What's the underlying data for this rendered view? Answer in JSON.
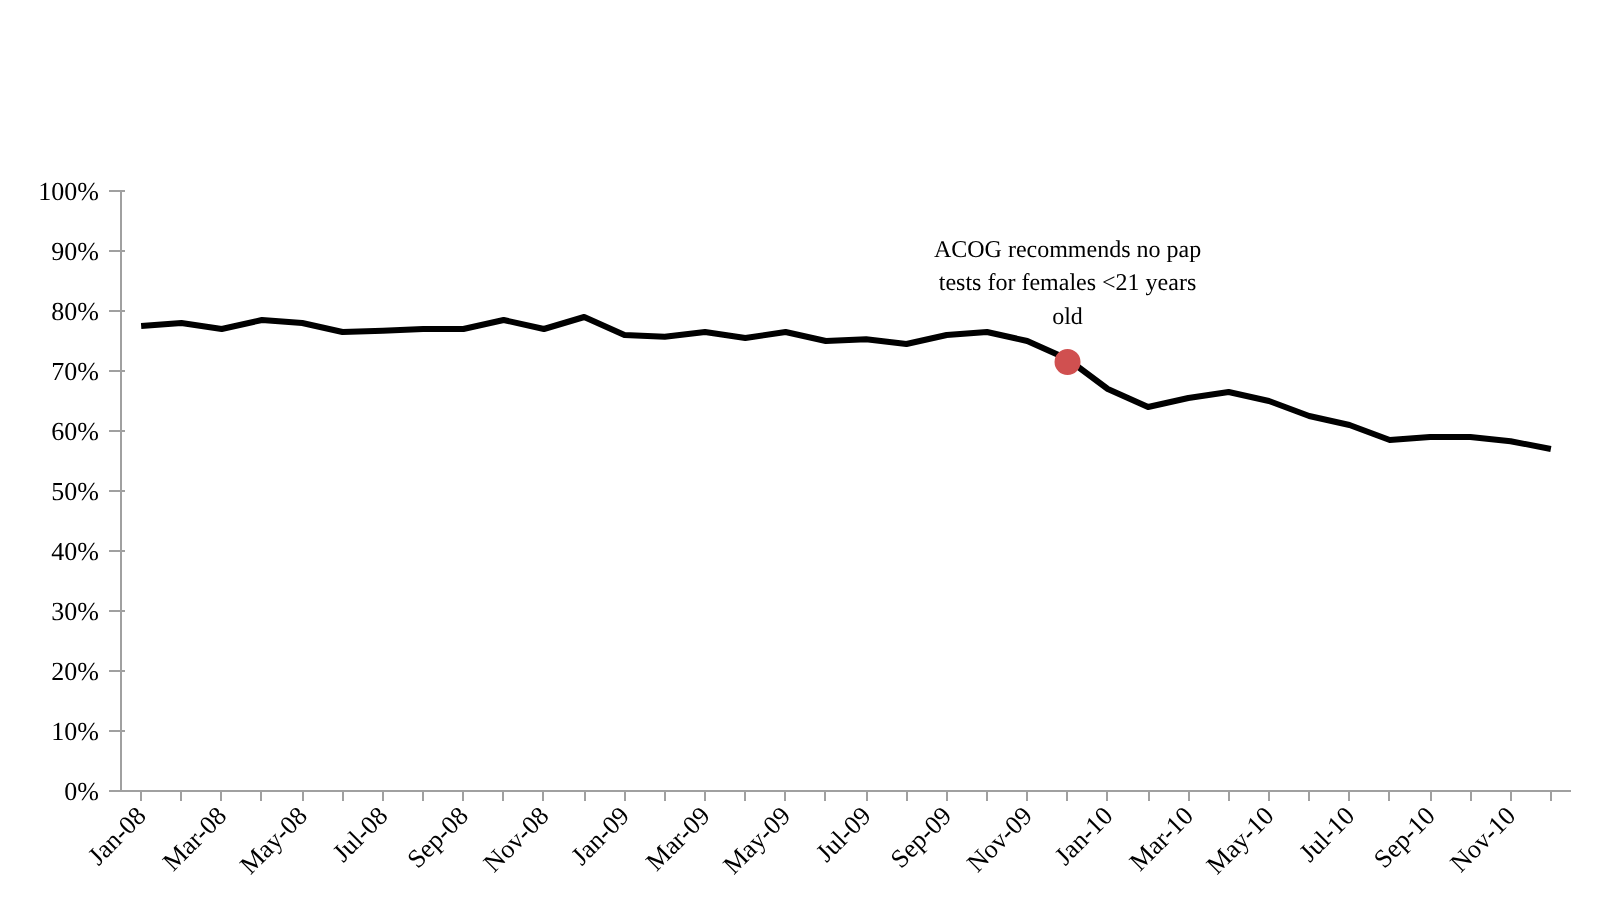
{
  "chart_data": {
    "type": "line",
    "categories": [
      "Jan-08",
      null,
      "Mar-08",
      null,
      "May-08",
      null,
      "Jul-08",
      null,
      "Sep-08",
      null,
      "Nov-08",
      null,
      "Jan-09",
      null,
      "Mar-09",
      null,
      "May-09",
      null,
      "Jul-09",
      null,
      "Sep-09",
      null,
      "Nov-09",
      null,
      "Jan-10",
      null,
      "Mar-10",
      null,
      "May-10",
      null,
      "Jul-10",
      null,
      "Sep-10",
      null,
      "Nov-10",
      null
    ],
    "series": [
      {
        "color": "#000000",
        "values": [
          77.5,
          78,
          77,
          78.5,
          78,
          76.5,
          76.7,
          77,
          77,
          78.5,
          77,
          79,
          76,
          75.7,
          76.5,
          75.5,
          76.5,
          75,
          75.3,
          74.5,
          76,
          76.5,
          75,
          72,
          67,
          64,
          65.5,
          66.5,
          65,
          62.5,
          61,
          58.5,
          59,
          59,
          58.3,
          57
        ]
      },
      {
        "type": "scatter",
        "color": "#d05050",
        "marker": "circle",
        "values": [
          null,
          null,
          null,
          null,
          null,
          null,
          null,
          null,
          null,
          null,
          null,
          null,
          null,
          null,
          null,
          null,
          null,
          null,
          null,
          null,
          null,
          null,
          null,
          71.5,
          null,
          null,
          null,
          null,
          null,
          null,
          null,
          null,
          null,
          null,
          null,
          null
        ]
      }
    ],
    "annotations": [
      {
        "text": "ACOG recommends no pap\ntests for females <21 years\nold",
        "y": 71.5
      }
    ],
    "ylim": [
      0,
      100
    ],
    "yticks": [
      {
        "value": 0,
        "label": "0%"
      },
      {
        "value": 10,
        "label": "10%"
      },
      {
        "value": 20,
        "label": "20%"
      },
      {
        "value": 30,
        "label": "30%"
      },
      {
        "value": 40,
        "label": "40%"
      },
      {
        "value": 50,
        "label": "50%"
      },
      {
        "value": 60,
        "label": "60%"
      },
      {
        "value": 70,
        "label": "70%"
      },
      {
        "value": 80,
        "label": "80%"
      },
      {
        "value": 90,
        "label": "90%"
      },
      {
        "value": 100,
        "label": "100%"
      }
    ],
    "grid": false,
    "line_style": "solid"
  }
}
